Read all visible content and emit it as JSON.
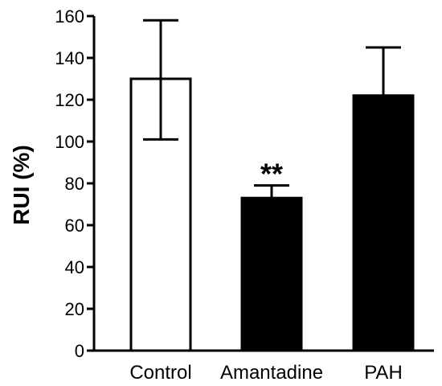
{
  "chart_data": {
    "type": "bar",
    "title": "",
    "xlabel": "",
    "ylabel": "RUI (%)",
    "ylim": [
      0,
      160
    ],
    "yticks": [
      0,
      20,
      40,
      60,
      80,
      100,
      120,
      140,
      160
    ],
    "categories": [
      "Control",
      "Amantadine",
      "PAH"
    ],
    "values": [
      130,
      73,
      122
    ],
    "error_upper": [
      158,
      79,
      145
    ],
    "error_lower": [
      101,
      73,
      122
    ],
    "fill_colors": [
      "#ffffff",
      "#000000",
      "#000000"
    ],
    "annotations": [
      {
        "category": "Amantadine",
        "text": "**"
      }
    ],
    "grid": false,
    "legend": "none"
  }
}
